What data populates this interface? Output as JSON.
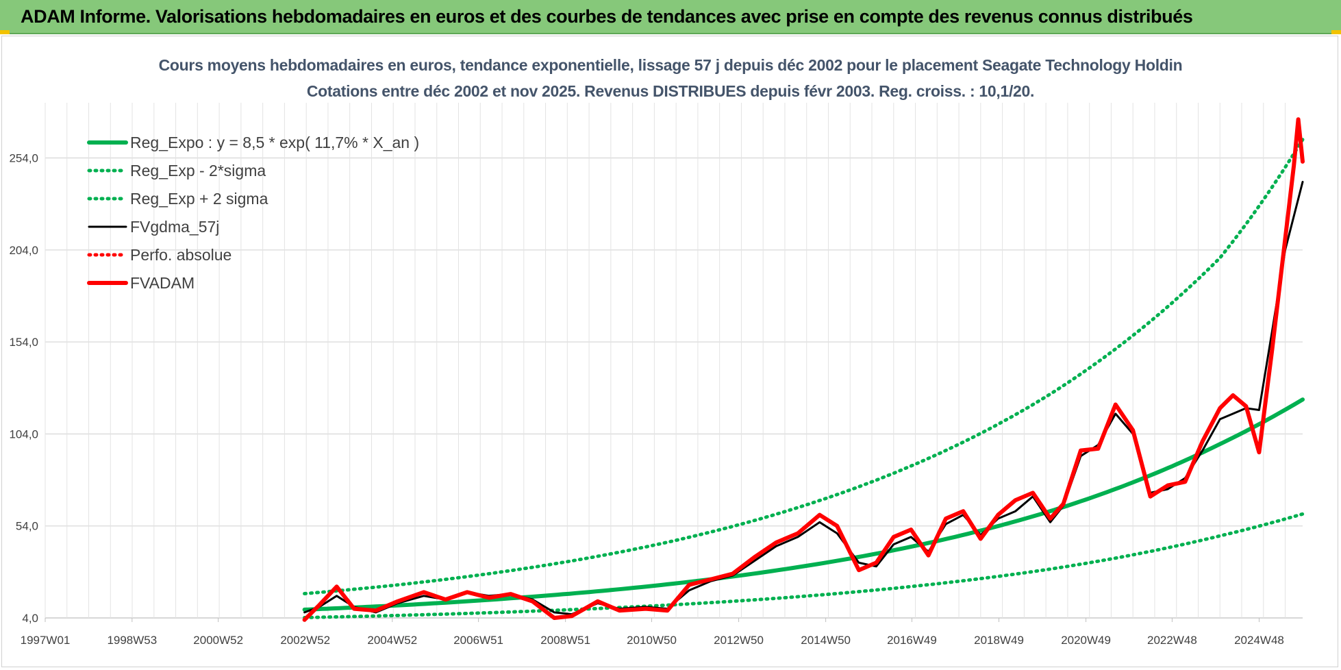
{
  "header": {
    "title": "ADAM Informe. Valorisations hebdomadaires en euros et des courbes de tendances avec prise en compte des revenus connus distribués"
  },
  "chart_data": {
    "type": "line",
    "title": "Cours moyens hebdomadaires en euros, tendance exponentielle, lissage 57 j depuis déc 2002 pour le placement Seagate Technology Holdin",
    "subtitle": "Cotations entre déc 2002 et nov 2025. Revenus DISTRIBUES depuis févr 2003. Reg. croiss. : 10,1/20.",
    "xlabel": "",
    "ylabel": "",
    "x_ticks": [
      "1997W01",
      "1998W53",
      "2000W52",
      "2002W52",
      "2004W52",
      "2006W51",
      "2008W51",
      "2010W50",
      "2012W50",
      "2014W50",
      "2016W49",
      "2018W49",
      "2020W49",
      "2022W48",
      "2024W48"
    ],
    "x_range": [
      "1997W01",
      "2025W48"
    ],
    "y_ticks": [
      "4,0",
      "54,0",
      "104,0",
      "154,0",
      "204,0",
      "254,0"
    ],
    "ylim": [
      4,
      284
    ],
    "grid": true,
    "legend_position": "top-left",
    "colors": {
      "reg": "#00b050",
      "band": "#00b050",
      "gdma": "#000000",
      "perfo": "#ff0000",
      "adam": "#ff0000"
    },
    "series": [
      {
        "name": "Reg_Expo : y = 8,5 * exp( 11,7% *  X_an )",
        "style": "solid-thick",
        "color": "#00b050",
        "x": [
          2002.96,
          2005,
          2008,
          2011,
          2014,
          2017,
          2020,
          2022,
          2024,
          2025.9
        ],
        "y": [
          8.5,
          10.7,
          15.2,
          21.5,
          30.5,
          43.2,
          61.3,
          77.7,
          98.5,
          122.7
        ]
      },
      {
        "name": "Reg_Exp - 2*sigma",
        "style": "dotted",
        "color": "#00b050",
        "x": [
          2002.96,
          2005,
          2008,
          2011,
          2014,
          2017,
          2020,
          2022,
          2024,
          2025.9
        ],
        "y": [
          4.2,
          5.3,
          7.5,
          10.6,
          15.0,
          21.3,
          30.2,
          38.3,
          48.6,
          60.5
        ]
      },
      {
        "name": "Reg_Exp + 2 sigma",
        "style": "dotted",
        "color": "#00b050",
        "x": [
          2002.96,
          2005,
          2008,
          2011,
          2014,
          2017,
          2020,
          2022,
          2024,
          2025.9
        ],
        "y": [
          17.2,
          21.7,
          30.8,
          43.6,
          61.8,
          87.6,
          124.2,
          157.5,
          199.7,
          264
        ]
      },
      {
        "name": "FVgdma_57j",
        "style": "solid",
        "color": "#000000",
        "x": [
          2002.96,
          2003.3,
          2003.7,
          2004.1,
          2004.6,
          2005.1,
          2005.7,
          2006.2,
          2006.7,
          2007.2,
          2007.7,
          2008.2,
          2008.7,
          2009.1,
          2009.7,
          2010.2,
          2010.8,
          2011.3,
          2011.8,
          2012.3,
          2012.8,
          2013.3,
          2013.8,
          2014.3,
          2014.8,
          2015.2,
          2015.7,
          2016.1,
          2016.5,
          2016.9,
          2017.3,
          2017.7,
          2018.1,
          2018.5,
          2018.9,
          2019.3,
          2019.7,
          2020.1,
          2020.4,
          2020.8,
          2021.2,
          2021.6,
          2022.0,
          2022.4,
          2022.8,
          2023.2,
          2023.6,
          2024.0,
          2024.3,
          2024.6,
          2024.9,
          2025.2,
          2025.5,
          2025.9
        ],
        "y": [
          7,
          10,
          16,
          10,
          7,
          12,
          16,
          14,
          18,
          16,
          17,
          14,
          7,
          6,
          12,
          9,
          10,
          9,
          19,
          24,
          27,
          35,
          43,
          48,
          56,
          50,
          34,
          32,
          44,
          48,
          40,
          55,
          60,
          49,
          58,
          62,
          70,
          56,
          65,
          92,
          98,
          115,
          104,
          72,
          74,
          80,
          95,
          112,
          115,
          118,
          117,
          160,
          204,
          241
        ]
      },
      {
        "name": "Perfo. absolue",
        "style": "dotted",
        "color": "#ff0000",
        "x": [],
        "y": []
      },
      {
        "name": "FVADAM",
        "style": "solid-thick",
        "color": "#ff0000",
        "x": [
          2002.96,
          2003.3,
          2003.7,
          2004.1,
          2004.6,
          2005.1,
          2005.7,
          2006.2,
          2006.7,
          2007.2,
          2007.7,
          2008.2,
          2008.7,
          2009.1,
          2009.7,
          2010.2,
          2010.8,
          2011.3,
          2011.8,
          2012.3,
          2012.8,
          2013.3,
          2013.8,
          2014.3,
          2014.8,
          2015.2,
          2015.7,
          2016.1,
          2016.5,
          2016.9,
          2017.3,
          2017.7,
          2018.1,
          2018.5,
          2018.9,
          2019.3,
          2019.7,
          2020.1,
          2020.4,
          2020.8,
          2021.2,
          2021.6,
          2022.0,
          2022.4,
          2022.8,
          2023.2,
          2023.6,
          2024.0,
          2024.3,
          2024.6,
          2024.9,
          2025.2,
          2025.5,
          2025.7,
          2025.8,
          2025.9
        ],
        "y": [
          3,
          11,
          21,
          9,
          8,
          13,
          18,
          14,
          18,
          15,
          17,
          13,
          4,
          5,
          13,
          8,
          9,
          8,
          22,
          25,
          28,
          37,
          45,
          50,
          60,
          54,
          30,
          34,
          48,
          52,
          38,
          58,
          62,
          47,
          60,
          68,
          72,
          58,
          66,
          95,
          96,
          120,
          106,
          70,
          76,
          78,
          100,
          118,
          125,
          119,
          94,
          150,
          210,
          250,
          275,
          252
        ]
      }
    ]
  }
}
